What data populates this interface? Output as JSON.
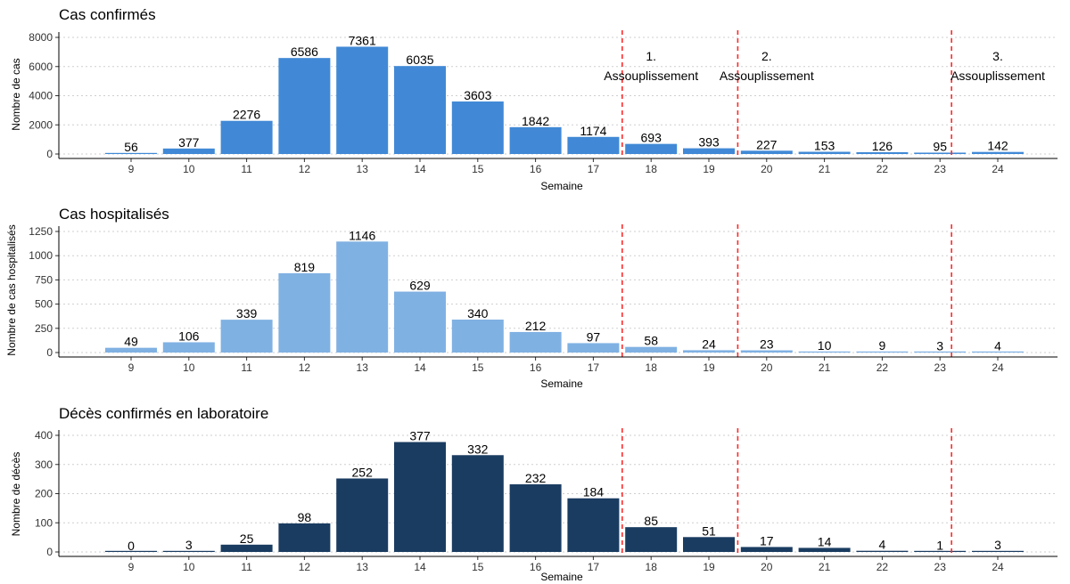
{
  "chart_data": [
    {
      "type": "bar",
      "title": "Cas confirmés",
      "xlabel": "Semaine",
      "ylabel": "Nombre de cas",
      "color": "#4189d6",
      "categories": [
        "9",
        "10",
        "11",
        "12",
        "13",
        "14",
        "15",
        "16",
        "17",
        "18",
        "19",
        "20",
        "21",
        "22",
        "23",
        "24"
      ],
      "values": [
        56,
        377,
        2276,
        6586,
        7361,
        6035,
        3603,
        1842,
        1174,
        693,
        393,
        227,
        153,
        126,
        95,
        142
      ],
      "data_labels": [
        "56",
        "377",
        "2276",
        "6586",
        "7361",
        "6035",
        "3603",
        "1842",
        "1174",
        "693",
        "393",
        "227",
        "153",
        "126",
        "95",
        "142"
      ],
      "ylim": [
        0,
        8000
      ],
      "yticks": [
        0,
        2000,
        4000,
        6000,
        8000
      ],
      "ytick_labels": [
        "0",
        "2000",
        "4000",
        "6000",
        "8000"
      ],
      "vlines": [
        17.5,
        19.5,
        23.2
      ],
      "annotations": [
        {
          "x": 18,
          "lines": [
            "1.",
            "Assouplissement"
          ]
        },
        {
          "x": 20,
          "lines": [
            "2.",
            "Assouplissement"
          ]
        },
        {
          "x": 24,
          "lines": [
            "3.",
            "Assouplissement"
          ]
        }
      ],
      "grid": "horizontal"
    },
    {
      "type": "bar",
      "title": "Cas hospitalisés",
      "xlabel": "Semaine",
      "ylabel": "Nombre de cas hospitalisés",
      "color": "#80b1e3",
      "categories": [
        "9",
        "10",
        "11",
        "12",
        "13",
        "14",
        "15",
        "16",
        "17",
        "18",
        "19",
        "20",
        "21",
        "22",
        "23",
        "24"
      ],
      "values": [
        49,
        106,
        339,
        819,
        1146,
        629,
        340,
        212,
        97,
        58,
        24,
        23,
        10,
        9,
        3,
        4
      ],
      "data_labels": [
        "49",
        "106",
        "339",
        "819",
        "1146",
        "629",
        "340",
        "212",
        "97",
        "58",
        "24",
        "23",
        "10",
        "9",
        "3",
        "4"
      ],
      "ylim": [
        0,
        1250
      ],
      "yticks": [
        0,
        250,
        500,
        750,
        1000,
        1250
      ],
      "ytick_labels": [
        "0",
        "250",
        "500",
        "750",
        "1000",
        "1250"
      ],
      "vlines": [
        17.5,
        19.5,
        23.2
      ],
      "grid": "horizontal"
    },
    {
      "type": "bar",
      "title": "Décès confirmés en laboratoire",
      "xlabel": "Semaine",
      "ylabel": "Nombre de décès",
      "color": "#1a3c61",
      "categories": [
        "9",
        "10",
        "11",
        "12",
        "13",
        "14",
        "15",
        "16",
        "17",
        "18",
        "19",
        "20",
        "21",
        "22",
        "23",
        "24"
      ],
      "values": [
        0,
        3,
        25,
        98,
        252,
        377,
        332,
        232,
        184,
        85,
        51,
        17,
        14,
        4,
        1,
        3
      ],
      "data_labels": [
        "0",
        "3",
        "25",
        "98",
        "252",
        "377",
        "332",
        "232",
        "184",
        "85",
        "51",
        "17",
        "14",
        "4",
        "1",
        "3"
      ],
      "ylim": [
        0,
        400
      ],
      "yticks": [
        0,
        100,
        200,
        300,
        400
      ],
      "ytick_labels": [
        "0",
        "100",
        "200",
        "300",
        "400"
      ],
      "vlines": [
        17.5,
        19.5,
        23.2
      ],
      "grid": "horizontal"
    }
  ]
}
